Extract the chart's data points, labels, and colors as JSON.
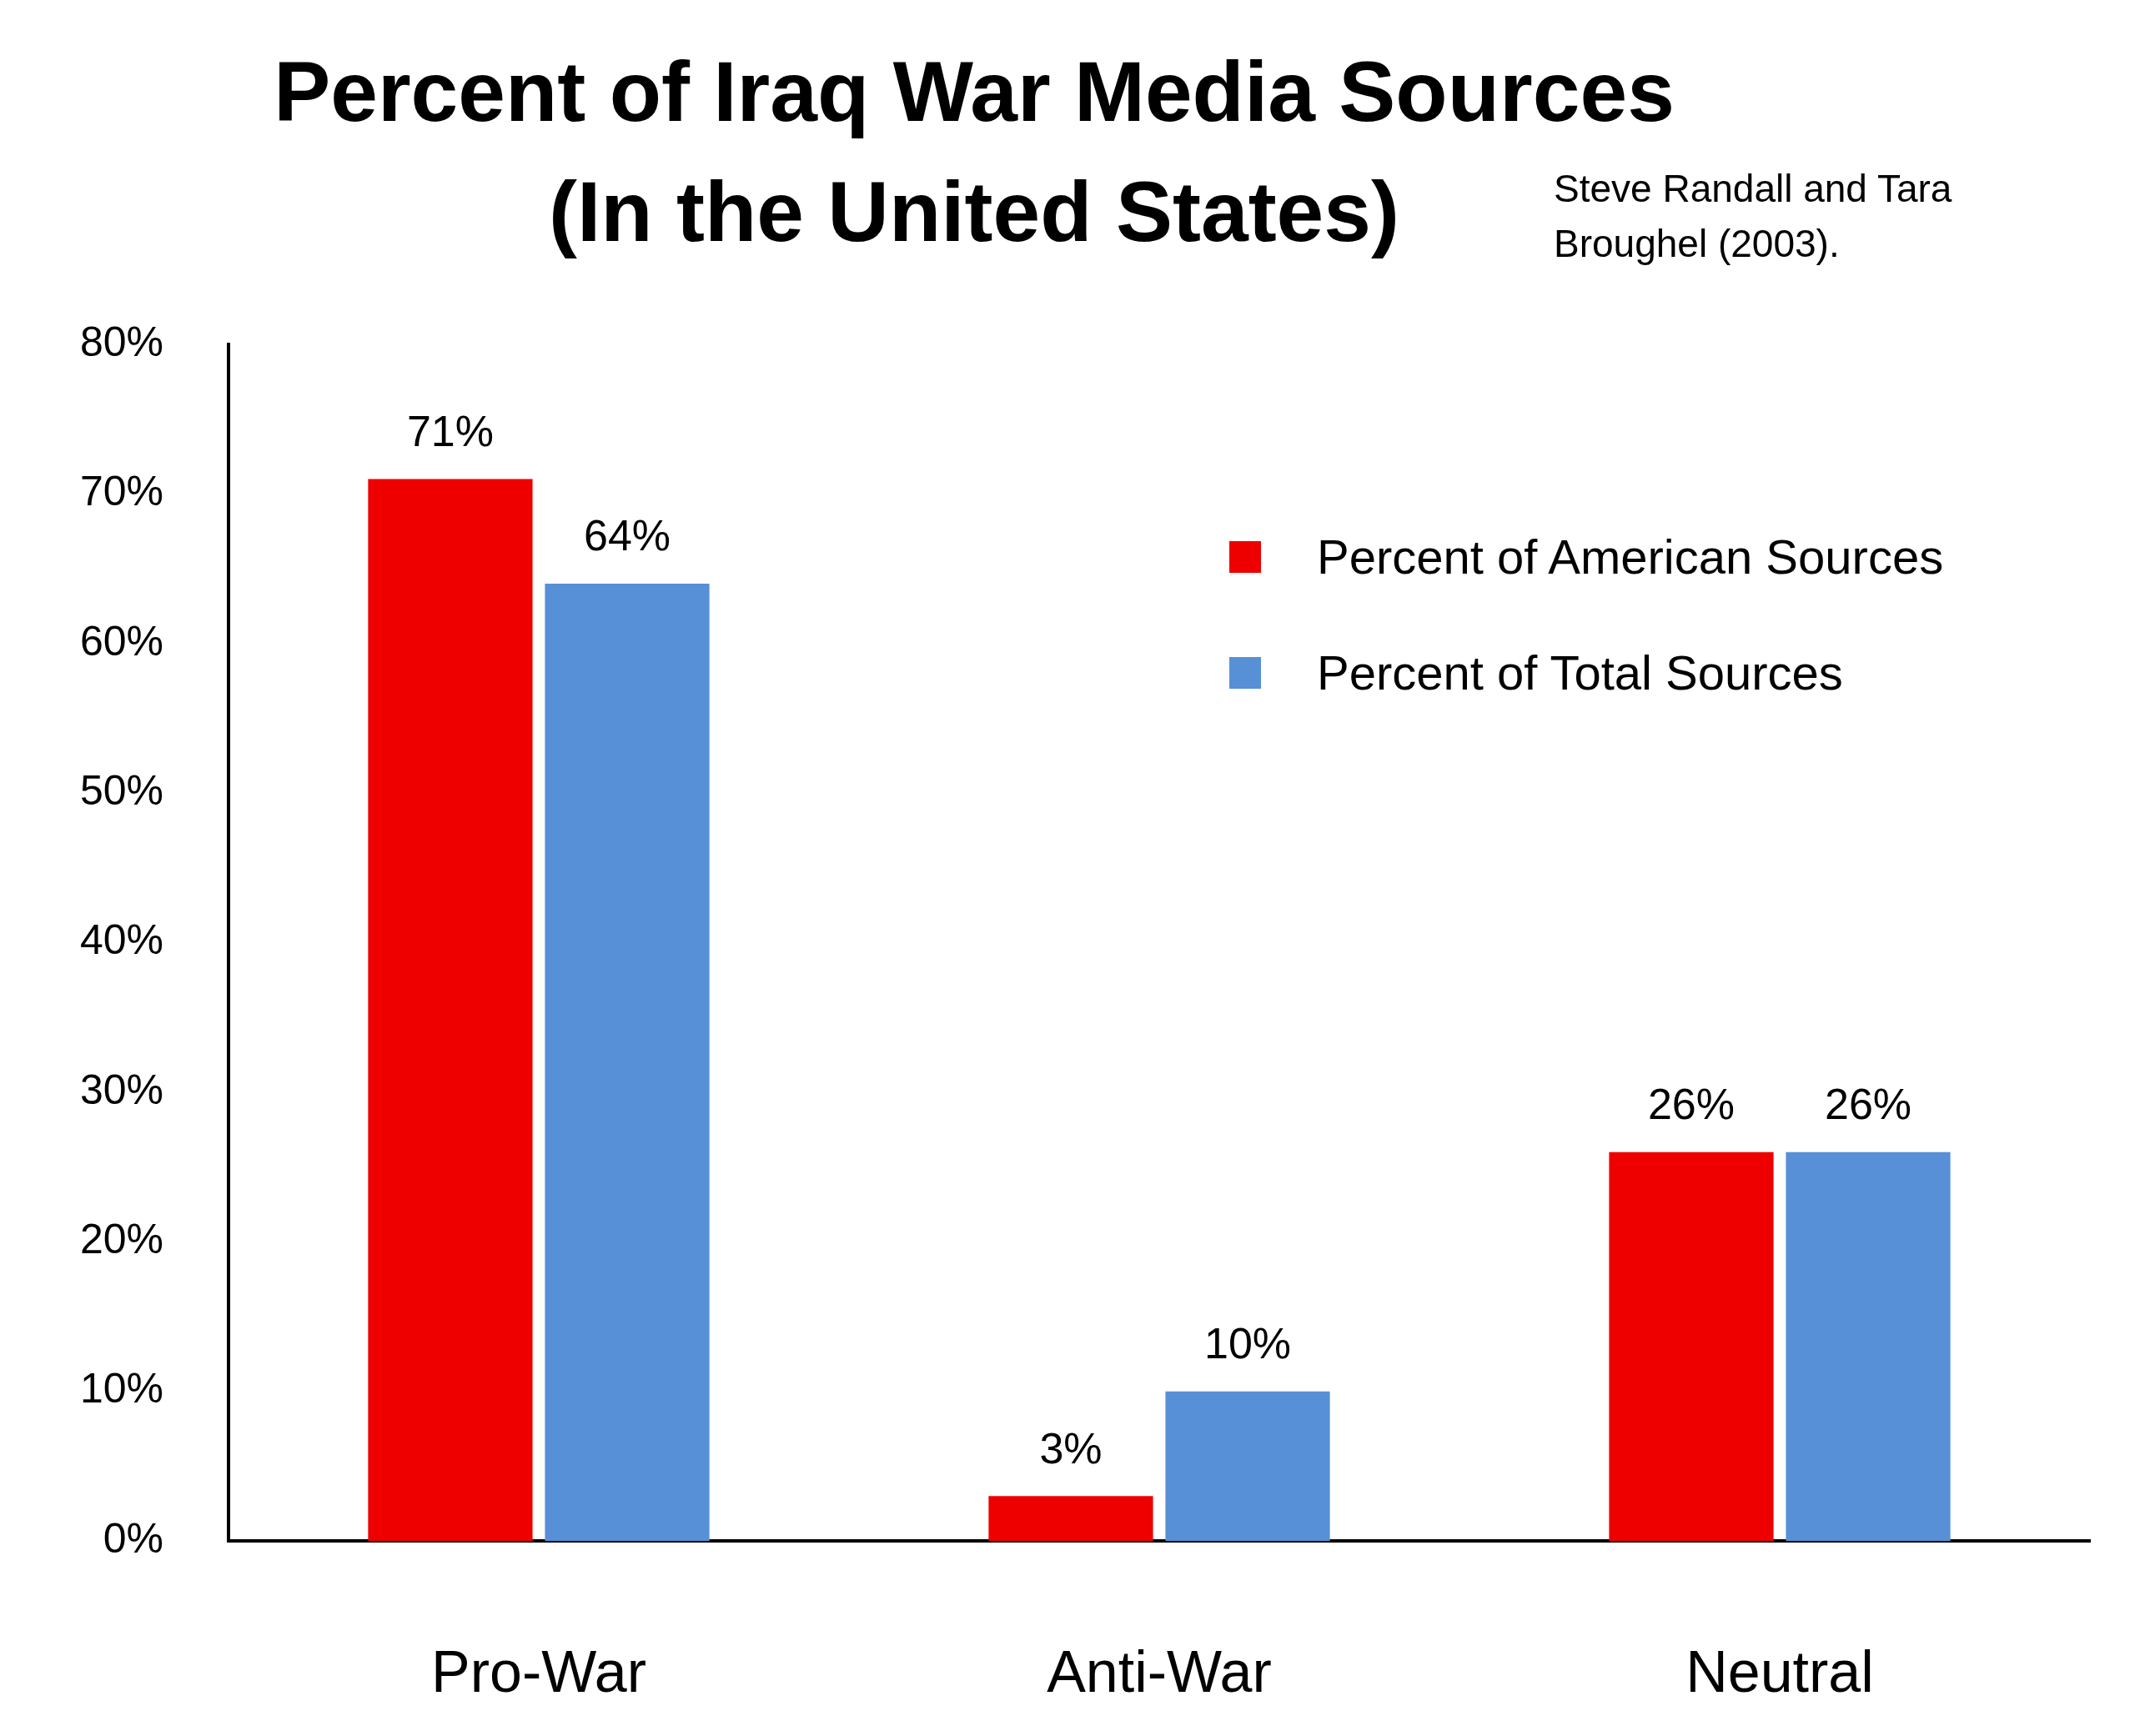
{
  "chart_data": {
    "type": "bar",
    "title": "Percent of Iraq War Media Sources\n(In the United States)",
    "annotations": [
      "Steve Randall and Tara Broughel (2003)."
    ],
    "categories": [
      "Pro-War",
      "Anti-War",
      "Neutral"
    ],
    "series": [
      {
        "name": "Percent of American Sources",
        "color": "#ee0000",
        "values": [
          71,
          3,
          26
        ],
        "value_labels": [
          "71%",
          "3%",
          "26%"
        ]
      },
      {
        "name": "Percent of Total Sources",
        "color": "#5790d6",
        "values": [
          64,
          10,
          26
        ],
        "value_labels": [
          "64%",
          "10%",
          "26%"
        ]
      }
    ],
    "ylim": [
      0,
      80
    ],
    "yticks": [
      {
        "value": 0,
        "label": "0%"
      },
      {
        "value": 10,
        "label": "10%"
      },
      {
        "value": 20,
        "label": "20%"
      },
      {
        "value": 30,
        "label": "30%"
      },
      {
        "value": 40,
        "label": "40%"
      },
      {
        "value": 50,
        "label": "50%"
      },
      {
        "value": 60,
        "label": "60%"
      },
      {
        "value": 70,
        "label": "70%"
      },
      {
        "value": 80,
        "label": "80%"
      }
    ],
    "legend": "top right"
  }
}
